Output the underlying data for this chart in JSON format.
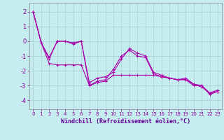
{
  "xlabel": "Windchill (Refroidissement éolien,°C)",
  "background_color": "#c5edf0",
  "grid_color": "#a8cdd4",
  "line_color": "#aa00aa",
  "xlim": [
    -0.5,
    23.5
  ],
  "ylim": [
    -4.6,
    2.6
  ],
  "yticks": [
    -4,
    -3,
    -2,
    -1,
    0,
    1,
    2
  ],
  "xticks": [
    0,
    1,
    2,
    3,
    4,
    5,
    6,
    7,
    8,
    9,
    10,
    11,
    12,
    13,
    14,
    15,
    16,
    17,
    18,
    19,
    20,
    21,
    22,
    23
  ],
  "series": [
    [
      2.0,
      -0.1,
      -1.1,
      0.0,
      0.0,
      -0.1,
      0.0,
      -2.8,
      -2.5,
      -2.4,
      -2.1,
      -1.2,
      -0.5,
      -0.8,
      -1.0,
      -2.1,
      -2.3,
      -2.5,
      -2.6,
      -2.5,
      -2.9,
      -3.1,
      -3.5,
      -3.3
    ],
    [
      2.0,
      -0.1,
      -1.2,
      0.0,
      0.0,
      -0.2,
      0.0,
      -3.0,
      -2.7,
      -2.6,
      -1.9,
      -1.0,
      -0.6,
      -1.0,
      -1.1,
      -2.2,
      -2.4,
      -2.5,
      -2.6,
      -2.6,
      -3.0,
      -3.0,
      -3.6,
      -3.4
    ],
    [
      2.0,
      -0.1,
      -1.5,
      -1.6,
      -1.6,
      -1.6,
      -1.6,
      -3.0,
      -2.8,
      -2.7,
      -2.3,
      -2.3,
      -2.3,
      -2.3,
      -2.3,
      -2.3,
      -2.4,
      -2.5,
      -2.6,
      -2.6,
      -2.9,
      -3.0,
      -3.5,
      -3.4
    ]
  ]
}
